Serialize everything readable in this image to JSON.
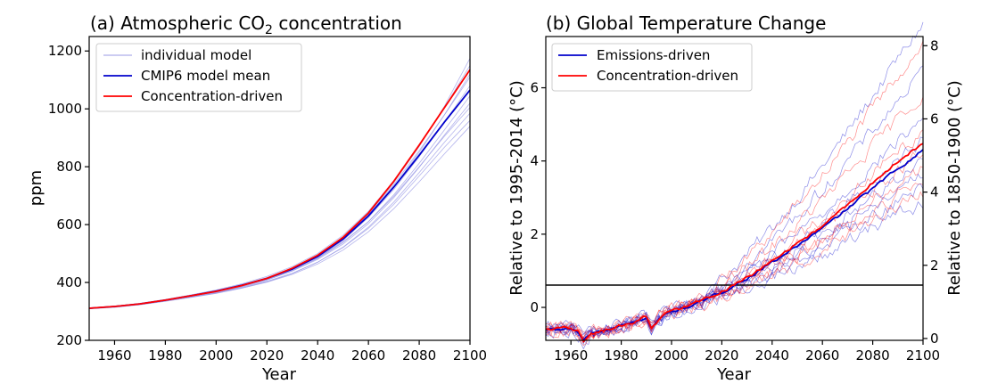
{
  "panels": [
    {
      "title": "(a) Atmospheric CO",
      "title_sub": "2",
      "title_end": " concentration",
      "xlabel": "Year",
      "ylabel": "ppm",
      "xlim": [
        1950,
        2100
      ],
      "ylim": [
        200,
        1250
      ],
      "xticks": [
        "1960",
        "1980",
        "2000",
        "2020",
        "2040",
        "2060",
        "2080",
        "2100"
      ],
      "yticks": [
        "200",
        "400",
        "600",
        "800",
        "1000",
        "1200"
      ],
      "legend": {
        "position": "upper-left",
        "entries": [
          {
            "label": "individual model",
            "color": "#9999e6"
          },
          {
            "label": "CMIP6 model mean",
            "color": "#0000cc"
          },
          {
            "label": "Concentration-driven",
            "color": "#ff0000"
          }
        ]
      }
    },
    {
      "title": "(b) Global Temperature Change",
      "xlabel": "Year",
      "ylabel_left": "Relative to 1995-2014 (°C)",
      "ylabel_right": "Relative to 1850-1900 (°C)",
      "xlim": [
        1950,
        2100
      ],
      "ylim": [
        -0.9,
        7.4
      ],
      "right_offset": 0.85,
      "xticks": [
        "1960",
        "1980",
        "2000",
        "2020",
        "2040",
        "2060",
        "2080",
        "2100"
      ],
      "yticks_left": [
        "0",
        "2",
        "4",
        "6"
      ],
      "yticks_right": [
        "0",
        "2",
        "4",
        "6",
        "8"
      ],
      "zero_line": true,
      "legend": {
        "position": "upper-left",
        "entries": [
          {
            "label": "Emissions-driven",
            "color": "#0000cc"
          },
          {
            "label": "Concentration-driven",
            "color": "#ff0000"
          }
        ]
      }
    }
  ],
  "chart_data": [
    {
      "type": "line",
      "title": "(a) Atmospheric CO2 concentration",
      "xlabel": "Year",
      "ylabel": "ppm",
      "xlim": [
        1950,
        2100
      ],
      "ylim": [
        200,
        1250
      ],
      "legend_position": "upper-left",
      "x": [
        1950,
        1960,
        1970,
        1980,
        1990,
        2000,
        2010,
        2020,
        2030,
        2040,
        2050,
        2060,
        2070,
        2080,
        2090,
        2100
      ],
      "series": [
        {
          "name": "CMIP6 model mean",
          "color": "#0000cc",
          "values": [
            311,
            317,
            326,
            339,
            354,
            370,
            390,
            414,
            446,
            490,
            550,
            630,
            730,
            840,
            955,
            1065
          ]
        },
        {
          "name": "Concentration-driven",
          "color": "#ff0000",
          "values": [
            311,
            317,
            326,
            339,
            354,
            369,
            389,
            414,
            449,
            494,
            556,
            640,
            750,
            875,
            1005,
            1135
          ]
        }
      ],
      "individual_models": [
        [
          310,
          316,
          325,
          338,
          352,
          368,
          388,
          412,
          445,
          490,
          552,
          636,
          745,
          870,
          1010,
          1175
        ],
        [
          311,
          318,
          328,
          341,
          357,
          374,
          395,
          421,
          455,
          500,
          563,
          646,
          752,
          874,
          1005,
          1150
        ],
        [
          309,
          315,
          324,
          336,
          350,
          365,
          384,
          408,
          440,
          484,
          545,
          626,
          730,
          850,
          980,
          1120
        ],
        [
          311,
          317,
          327,
          340,
          355,
          371,
          392,
          417,
          450,
          495,
          556,
          636,
          738,
          856,
          980,
          1110
        ],
        [
          310,
          316,
          326,
          339,
          353,
          369,
          390,
          415,
          447,
          490,
          548,
          625,
          722,
          835,
          955,
          1080
        ],
        [
          311,
          317,
          326,
          339,
          353,
          368,
          387,
          411,
          442,
          483,
          538,
          610,
          703,
          812,
          928,
          1045
        ],
        [
          310,
          315,
          324,
          337,
          351,
          366,
          385,
          409,
          440,
          480,
          533,
          603,
          693,
          798,
          910,
          1020
        ],
        [
          311,
          317,
          327,
          340,
          355,
          371,
          391,
          415,
          446,
          486,
          540,
          610,
          698,
          800,
          906,
          1005
        ],
        [
          309,
          314,
          323,
          335,
          348,
          362,
          380,
          402,
          431,
          470,
          522,
          591,
          678,
          780,
          885,
          985
        ],
        [
          310,
          316,
          325,
          337,
          350,
          364,
          382,
          404,
          432,
          470,
          521,
          587,
          670,
          768,
          868,
          960
        ],
        [
          310,
          315,
          324,
          336,
          349,
          363,
          380,
          401,
          428,
          464,
          512,
          575,
          655,
          748,
          845,
          940
        ]
      ]
    },
    {
      "type": "line",
      "title": "(b) Global Temperature Change",
      "xlabel": "Year",
      "ylabel": "Relative to 1995-2014 (°C)",
      "ylabel_secondary": "Relative to 1850-1900 (°C)",
      "xlim": [
        1950,
        2100
      ],
      "ylim": [
        -0.9,
        7.4
      ],
      "legend_position": "upper-left",
      "x": [
        1950,
        1955,
        1960,
        1963,
        1965,
        1968,
        1970,
        1975,
        1980,
        1985,
        1990,
        1992,
        1995,
        2000,
        2005,
        2010,
        2015,
        2020,
        2025,
        2030,
        2035,
        2040,
        2045,
        2050,
        2055,
        2060,
        2065,
        2070,
        2075,
        2080,
        2085,
        2090,
        2095,
        2100
      ],
      "series": [
        {
          "name": "Emissions-driven",
          "color": "#0000cc",
          "values": [
            -0.62,
            -0.6,
            -0.58,
            -0.7,
            -0.9,
            -0.7,
            -0.68,
            -0.62,
            -0.52,
            -0.42,
            -0.28,
            -0.55,
            -0.3,
            -0.12,
            -0.02,
            0.1,
            0.25,
            0.42,
            0.6,
            0.8,
            1.0,
            1.22,
            1.45,
            1.68,
            1.92,
            2.16,
            2.42,
            2.7,
            2.98,
            3.25,
            3.52,
            3.8,
            4.05,
            4.3
          ]
        },
        {
          "name": "Concentration-driven",
          "color": "#ff0000",
          "values": [
            -0.6,
            -0.58,
            -0.55,
            -0.68,
            -0.92,
            -0.72,
            -0.7,
            -0.6,
            -0.5,
            -0.4,
            -0.25,
            -0.6,
            -0.32,
            -0.1,
            0.0,
            0.12,
            0.27,
            0.44,
            0.62,
            0.82,
            1.03,
            1.26,
            1.5,
            1.74,
            1.98,
            2.24,
            2.5,
            2.8,
            3.1,
            3.4,
            3.7,
            3.98,
            4.25,
            4.45
          ]
        }
      ],
      "individual_models_end": [
        7.8,
        7.3,
        6.5,
        5.9,
        5.2,
        4.9,
        4.6,
        4.3,
        4.1,
        3.9,
        3.7,
        3.5,
        3.3,
        3.1,
        2.9
      ]
    }
  ]
}
